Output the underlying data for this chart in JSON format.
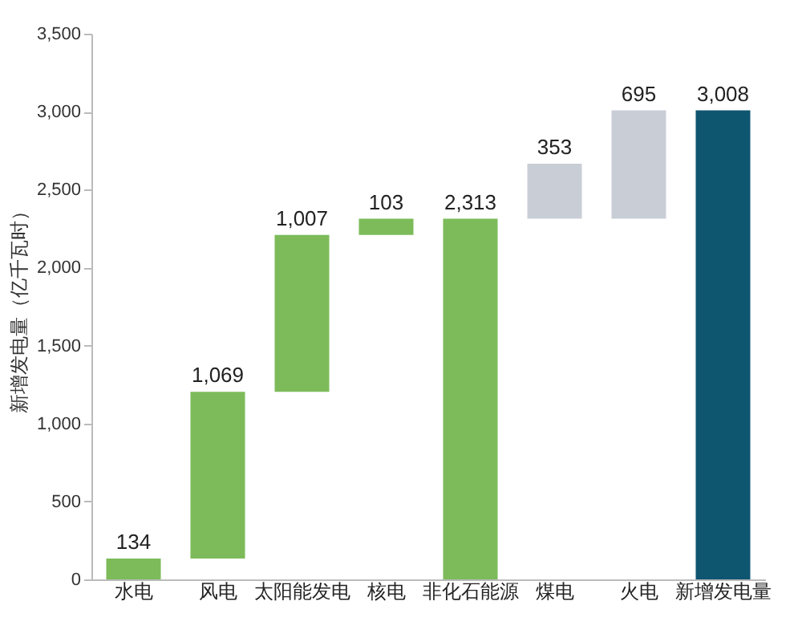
{
  "chart_data": {
    "type": "bar",
    "ylabel": "新增发电量（亿千瓦时）",
    "categories": [
      "水电",
      "风电",
      "太阳能发电",
      "核电",
      "非化石能源",
      "煤电",
      "火电",
      "新增发电量"
    ],
    "values": [
      134,
      1069,
      1007,
      103,
      2313,
      353,
      695,
      3008
    ],
    "base": [
      0,
      134,
      1203,
      2210,
      0,
      2313,
      2313,
      0
    ],
    "colors": [
      "#7dbb5a",
      "#7dbb5a",
      "#7dbb5a",
      "#7dbb5a",
      "#7dbb5a",
      "#c9ced6",
      "#c9ced6",
      "#0e5570"
    ],
    "value_labels": [
      "134",
      "1,069",
      "1,007",
      "103",
      "2,313",
      "353",
      "695",
      "3,008"
    ],
    "ylim": [
      0,
      3500
    ],
    "yticks": [
      {
        "value": 0,
        "label": "0"
      },
      {
        "value": 500,
        "label": "500"
      },
      {
        "value": 1000,
        "label": "1,000"
      },
      {
        "value": 1500,
        "label": "1,500"
      },
      {
        "value": 2000,
        "label": "2,000"
      },
      {
        "value": 2500,
        "label": "2,500"
      },
      {
        "value": 3000,
        "label": "3,000"
      },
      {
        "value": 3500,
        "label": "3,500"
      }
    ],
    "grid": false
  }
}
